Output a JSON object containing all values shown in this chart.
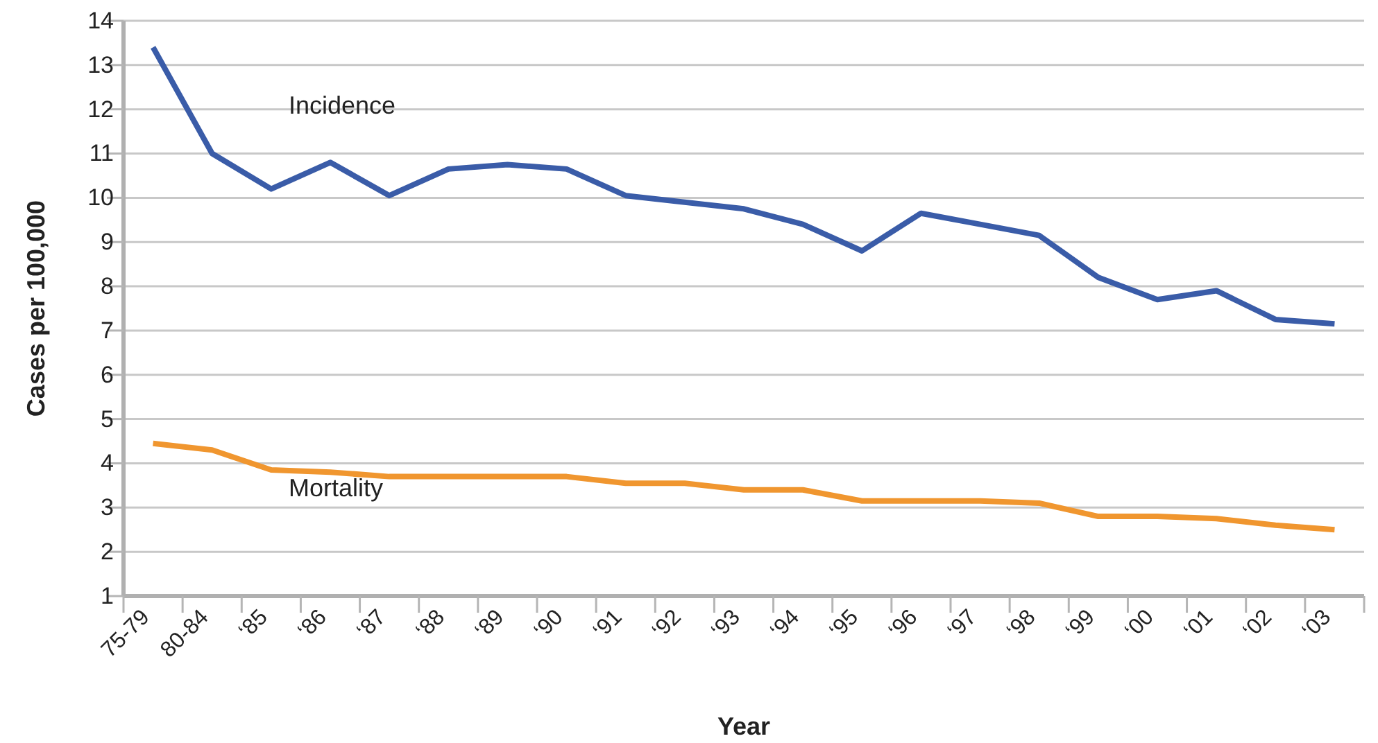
{
  "chart_data": {
    "type": "line",
    "xlabel": "Year",
    "ylabel": "Cases per 100,000",
    "categories": [
      "75-79",
      "80-84",
      "‘85",
      "‘86",
      "‘87",
      "‘88",
      "‘89",
      "‘90",
      "‘91",
      "‘92",
      "‘93",
      "‘94",
      "‘95",
      "‘96",
      "‘97",
      "‘98",
      "‘99",
      "‘00",
      "‘01",
      "‘02",
      "‘03"
    ],
    "series": [
      {
        "name": "Incidence",
        "color": "#3a5ca8",
        "values": [
          13.4,
          11.0,
          10.2,
          10.8,
          10.05,
          10.65,
          10.75,
          10.65,
          10.05,
          9.9,
          9.75,
          9.4,
          8.8,
          9.65,
          9.4,
          9.15,
          8.2,
          7.7,
          7.9,
          7.25,
          7.15
        ]
      },
      {
        "name": "Mortality",
        "color": "#f0962f",
        "values": [
          4.45,
          4.3,
          3.85,
          3.8,
          3.7,
          3.7,
          3.7,
          3.7,
          3.55,
          3.55,
          3.4,
          3.4,
          3.15,
          3.15,
          3.15,
          3.1,
          2.8,
          2.8,
          2.75,
          2.6,
          2.5
        ]
      }
    ],
    "ylim": [
      1,
      14
    ],
    "yticks": [
      1,
      2,
      3,
      4,
      5,
      6,
      7,
      8,
      9,
      10,
      11,
      12,
      13,
      14
    ],
    "grid": "y",
    "legend": false,
    "marker": "none",
    "line_style": "solid"
  }
}
